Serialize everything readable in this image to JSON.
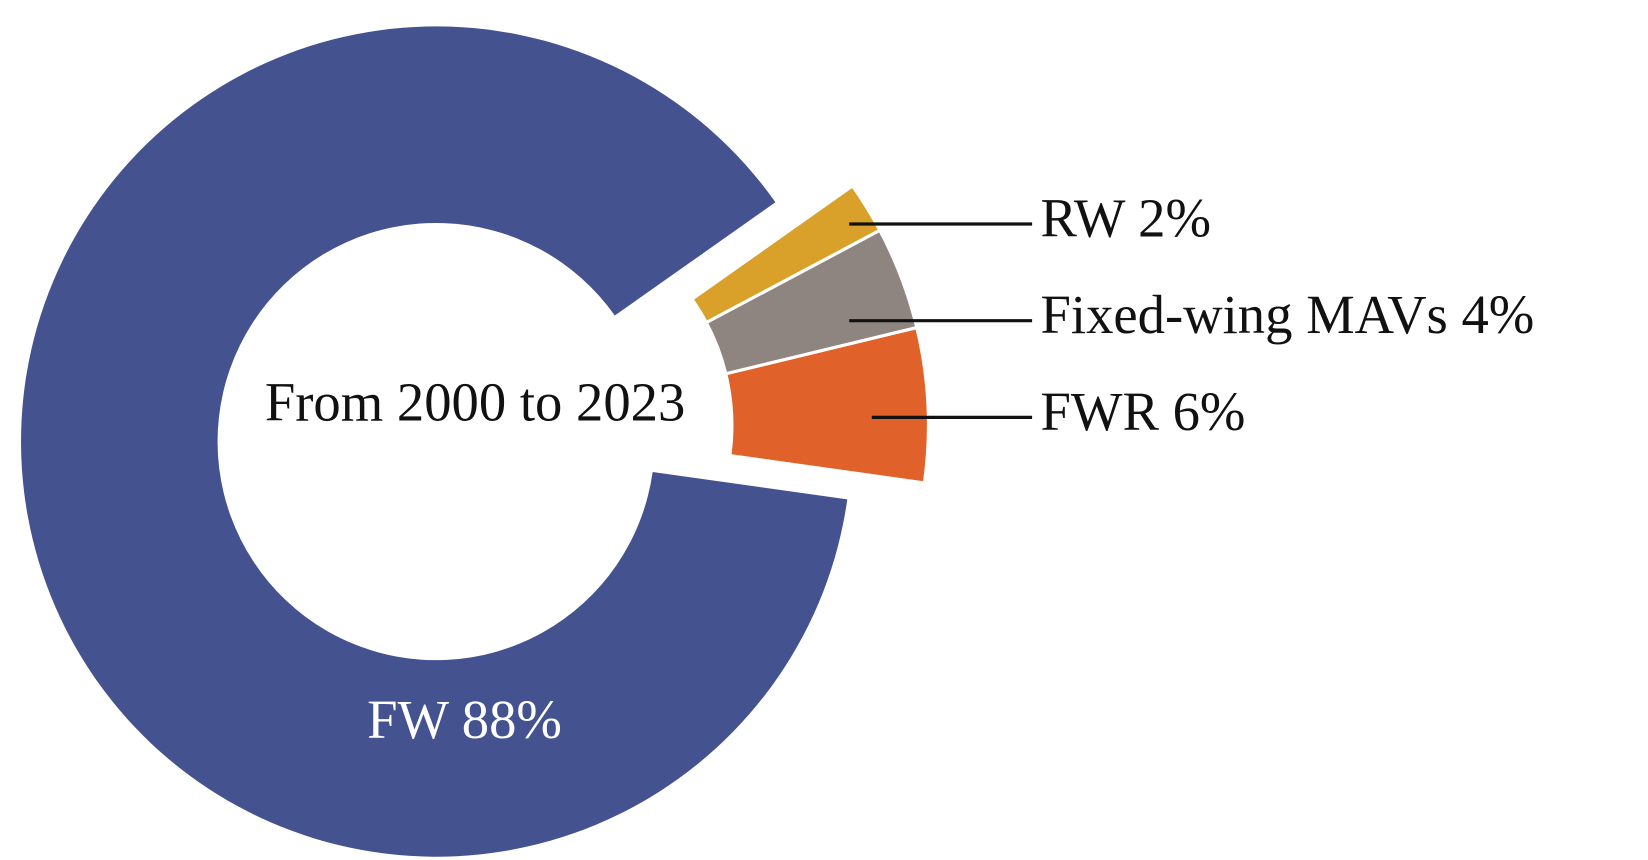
{
  "chart_data": {
    "type": "donut",
    "center_text": "From 2000 to 2023",
    "values": [
      88,
      6,
      4,
      2
    ],
    "value_labels": [
      "FW 88%",
      "FWR 6%",
      "Fixed-wing MAVs 4%",
      "RW 2%"
    ],
    "colors": [
      "#44528f",
      "#e0622a",
      "#8e8580",
      "#d9a12a"
    ]
  }
}
